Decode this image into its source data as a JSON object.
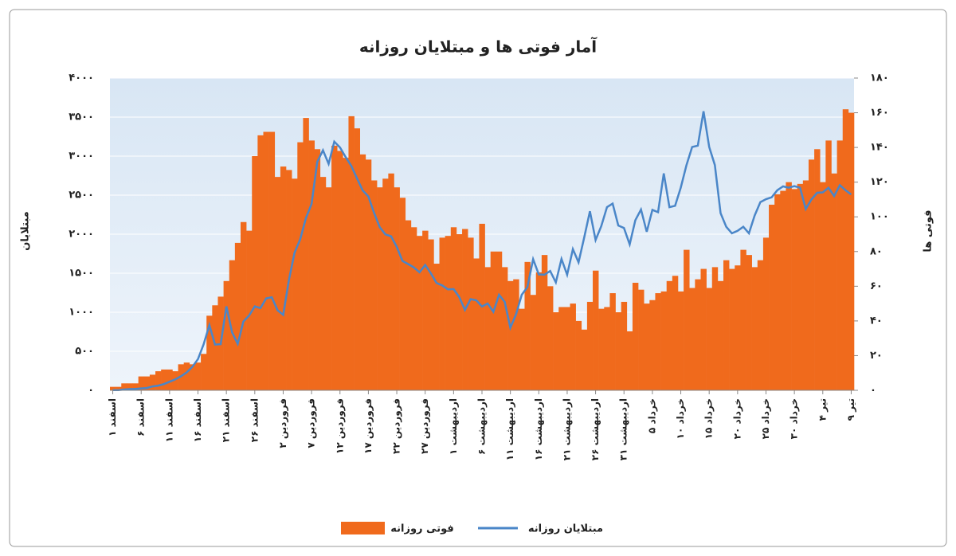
{
  "chart_data": {
    "type": "bar",
    "title": "آمار فوتی ها و مبتلایان روزانه",
    "y_label": "مبتلایان",
    "y2_label": "فوتی ها",
    "categories": [
      "۱ اسفند",
      null,
      null,
      null,
      null,
      "۶ اسفند",
      null,
      null,
      null,
      null,
      "۱۱ اسفند",
      null,
      null,
      null,
      null,
      "۱۶ اسفند",
      null,
      null,
      null,
      null,
      "۲۱ اسفند",
      null,
      null,
      null,
      null,
      "۲۶ اسفند",
      null,
      null,
      null,
      null,
      "۲ فروردین",
      null,
      null,
      null,
      null,
      "۷ فروردین",
      null,
      null,
      null,
      null,
      "۱۲ فروردین",
      null,
      null,
      null,
      null,
      "۱۷ فروردین",
      null,
      null,
      null,
      null,
      "۲۲ فروردین",
      null,
      null,
      null,
      null,
      "۲۷ فروردین",
      null,
      null,
      null,
      null,
      "۱ اردیبهشت",
      null,
      null,
      null,
      null,
      "۶ اردیبهشت",
      null,
      null,
      null,
      null,
      "۱۱ اردیبهشت",
      null,
      null,
      null,
      null,
      "۱۶ اردیبهشت",
      null,
      null,
      null,
      null,
      "۲۱ اردیبهشت",
      null,
      null,
      null,
      null,
      "۲۶ اردیبهشت",
      null,
      null,
      null,
      null,
      "۳۱ اردیبهشت",
      null,
      null,
      null,
      null,
      "۵ خرداد",
      null,
      null,
      null,
      null,
      "۱۰ خرداد",
      null,
      null,
      null,
      null,
      "۱۵ خرداد",
      null,
      null,
      null,
      null,
      "۲۰ خرداد",
      null,
      null,
      null,
      null,
      "۲۵ خرداد",
      null,
      null,
      null,
      null,
      "۳۰ خرداد",
      null,
      null,
      null,
      null,
      "۴ تیر",
      null,
      null,
      null,
      null,
      "۹ تیر"
    ],
    "series": [
      {
        "name": "فوتی روزانه",
        "type": "bar",
        "axis": "y2",
        "color": "#f06a1c",
        "values": [
          2,
          2,
          4,
          4,
          4,
          8,
          8,
          9,
          11,
          12,
          12,
          11,
          15,
          16,
          15,
          16,
          21,
          43,
          49,
          54,
          63,
          75,
          85,
          97,
          92,
          135,
          147,
          149,
          149,
          123,
          129,
          127,
          122,
          143,
          157,
          144,
          139,
          123,
          117,
          141,
          138,
          134,
          158,
          151,
          136,
          133,
          121,
          117,
          122,
          125,
          117,
          111,
          98,
          94,
          89,
          92,
          87,
          73,
          88,
          89,
          94,
          90,
          93,
          88,
          76,
          96,
          71,
          80,
          80,
          71,
          63,
          64,
          47,
          74,
          55,
          68,
          78,
          60,
          45,
          48,
          48,
          50,
          40,
          35,
          51,
          69,
          47,
          48,
          56,
          45,
          51,
          34,
          62,
          58,
          50,
          52,
          56,
          57,
          63,
          66,
          57,
          81,
          59,
          64,
          70,
          59,
          71,
          63,
          75,
          70,
          72,
          81,
          78,
          71,
          75,
          88,
          107,
          113,
          115,
          120,
          116,
          119,
          121,
          133,
          139,
          120,
          144,
          125,
          144,
          162,
          160
        ]
      },
      {
        "name": "مبتلایان روزانه",
        "type": "line",
        "color": "#4a86c8",
        "values": [
          2,
          3,
          10,
          15,
          18,
          25,
          30,
          50,
          60,
          80,
          110,
          140,
          180,
          230,
          300,
          400,
          590,
          835,
          586,
          591,
          1076,
          743,
          595,
          881,
          958,
          1075,
          1053,
          1178,
          1192,
          1028,
          966,
          1411,
          1762,
          1934,
          2206,
          2389,
          2926,
          3076,
          2901,
          3186,
          3111,
          2988,
          2875,
          2715,
          2560,
          2483,
          2274,
          2089,
          1997,
          1972,
          1837,
          1657,
          1617,
          1574,
          1512,
          1606,
          1499,
          1374,
          1343,
          1294,
          1297,
          1194,
          1030,
          1168,
          1153,
          1073,
          1112,
          1006,
          1223,
          1134,
          802,
          976,
          1223,
          1323,
          1680,
          1485,
          1481,
          1529,
          1383,
          1683,
          1481,
          1808,
          1640,
          1957,
          2294,
          1926,
          2102,
          2346,
          2392,
          2111,
          2080,
          1869,
          2180,
          2316,
          2031,
          2311,
          2282,
          2779,
          2346,
          2364,
          2596,
          2886,
          3117,
          3134,
          3574,
          3117,
          2886,
          2269,
          2095,
          2011,
          2043,
          2095,
          2011,
          2238,
          2410,
          2449,
          2472,
          2563,
          2612,
          2596,
          2615,
          2595,
          2322,
          2445,
          2531,
          2536,
          2595,
          2489,
          2628,
          2563,
          2509
        ]
      }
    ],
    "ylim": [
      0,
      4000
    ],
    "yticks": [
      {
        "value": 0,
        "label": "۰"
      },
      {
        "value": 500,
        "label": "۵۰۰"
      },
      {
        "value": 1000,
        "label": "۱۰۰۰"
      },
      {
        "value": 1500,
        "label": "۱۵۰۰"
      },
      {
        "value": 2000,
        "label": "۲۰۰۰"
      },
      {
        "value": 2500,
        "label": "۲۵۰۰"
      },
      {
        "value": 3000,
        "label": "۳۰۰۰"
      },
      {
        "value": 3500,
        "label": "۳۵۰۰"
      },
      {
        "value": 4000,
        "label": "۴۰۰۰"
      }
    ],
    "y2lim": [
      0,
      180
    ],
    "y2ticks": [
      {
        "value": 0,
        "label": "۰"
      },
      {
        "value": 20,
        "label": "۲۰"
      },
      {
        "value": 40,
        "label": "۴۰"
      },
      {
        "value": 60,
        "label": "۶۰"
      },
      {
        "value": 80,
        "label": "۸۰"
      },
      {
        "value": 100,
        "label": "۱۰۰"
      },
      {
        "value": 120,
        "label": "۱۲۰"
      },
      {
        "value": 140,
        "label": "۱۴۰"
      },
      {
        "value": 160,
        "label": "۱۶۰"
      },
      {
        "value": 180,
        "label": "۱۸۰"
      }
    ],
    "grid": true
  }
}
